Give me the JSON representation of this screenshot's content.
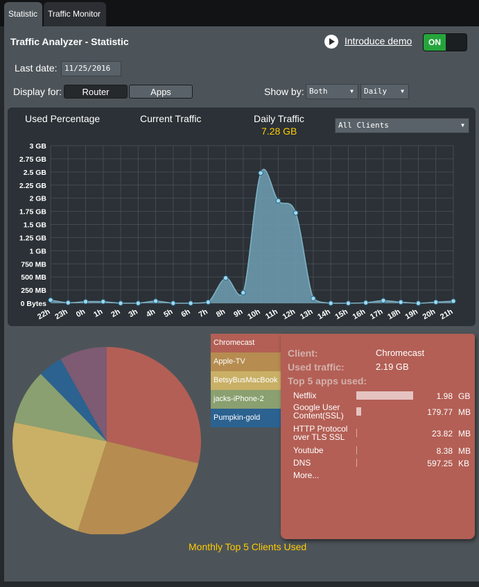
{
  "tabs": [
    {
      "label": "Statistic",
      "active": true
    },
    {
      "label": "Traffic Monitor",
      "active": false
    }
  ],
  "header": {
    "title": "Traffic Analyzer - Statistic",
    "demo_link": "Introduce demo",
    "toggle_label": "ON"
  },
  "filters": {
    "last_date_label": "Last date:",
    "last_date_value": "11/25/2016",
    "display_for_label": "Display for:",
    "display_router": "Router",
    "display_apps": "Apps",
    "show_by_label": "Show by:",
    "show_by_value": "Both",
    "period_value": "Daily"
  },
  "chart_header": {
    "used_percentage": "Used Percentage",
    "current_traffic": "Current Traffic",
    "daily_traffic": "Daily Traffic",
    "daily_traffic_value": "7.28 GB",
    "clients_select": "All Clients"
  },
  "chart_data": {
    "type": "area",
    "x": [
      "22h",
      "23h",
      "0h",
      "1h",
      "2h",
      "3h",
      "4h",
      "5h",
      "6h",
      "7h",
      "8h",
      "9h",
      "10h",
      "11h",
      "12h",
      "13h",
      "14h",
      "15h",
      "16h",
      "17h",
      "18h",
      "19h",
      "20h",
      "21h"
    ],
    "y_gb": [
      0.06,
      0.01,
      0.03,
      0.03,
      0.0,
      0.0,
      0.04,
      0.0,
      0.0,
      0.02,
      0.48,
      0.2,
      2.48,
      1.95,
      1.72,
      0.09,
      0.0,
      0.0,
      0.01,
      0.05,
      0.02,
      0.0,
      0.02,
      0.04
    ],
    "ytick_values": [
      0,
      0.25,
      0.5,
      0.75,
      1,
      1.25,
      1.5,
      1.75,
      2,
      2.25,
      2.5,
      2.75,
      3
    ],
    "ytick_labels": [
      "0 Bytes",
      "250 MB",
      "500 MB",
      "750 MB",
      "1 GB",
      "1.25 GB",
      "1.5 GB",
      "1.75 GB",
      "2 GB",
      "2.25 GB",
      "2.5 GB",
      "2.75 GB",
      "3 GB"
    ],
    "ylim": [
      0,
      3
    ],
    "grid": true,
    "fill_color": "#6b9aad",
    "point_color": "#9fd8f0"
  },
  "pie": {
    "title": "Monthly Top 5 Clients Used",
    "slices": [
      {
        "name": "Chromecast",
        "value": 2.19,
        "color": "#b35f55"
      },
      {
        "name": "Apple-TV",
        "value": 2.0,
        "color": "#b68c50"
      },
      {
        "name": "BetsyBusMacBook",
        "value": 1.77,
        "color": "#c9b066"
      },
      {
        "name": "jacks-iPhone-2",
        "value": 0.72,
        "color": "#8aa070"
      },
      {
        "name": "Pumpkin-gold",
        "value": 0.32,
        "color": "#2b6290"
      },
      {
        "name": "",
        "value": 0.62,
        "color": "#7e5a73"
      }
    ]
  },
  "legend": [
    {
      "label": "Chromecast",
      "color": "#b35f55"
    },
    {
      "label": "Apple-TV",
      "color": "#b68c50"
    },
    {
      "label": "BetsyBusMacBook",
      "color": "#c9b066"
    },
    {
      "label": "jacks-iPhone-2",
      "color": "#8aa070"
    },
    {
      "label": "Pumpkin-gold",
      "color": "#2b6290"
    }
  ],
  "detail": {
    "client_label": "Client:",
    "client_value": "Chromecast",
    "used_label": "Used traffic:",
    "used_value": "2.19 GB",
    "top_apps_label": "Top 5 apps used:",
    "apps": [
      {
        "name": "Netflix",
        "value": "1.98",
        "unit": "GB",
        "bar_fraction": 1.0
      },
      {
        "name": "Google User Content(SSL)",
        "value": "179.77",
        "unit": "MB",
        "bar_fraction": 0.09
      },
      {
        "name": "HTTP Protocol over TLS SSL",
        "value": "23.82",
        "unit": "MB",
        "bar_fraction": 0.012
      },
      {
        "name": "Youtube",
        "value": "8.38",
        "unit": "MB",
        "bar_fraction": 0.005
      },
      {
        "name": "DNS",
        "value": "597.25",
        "unit": "KB",
        "bar_fraction": 0.003
      }
    ],
    "more": "More..."
  }
}
